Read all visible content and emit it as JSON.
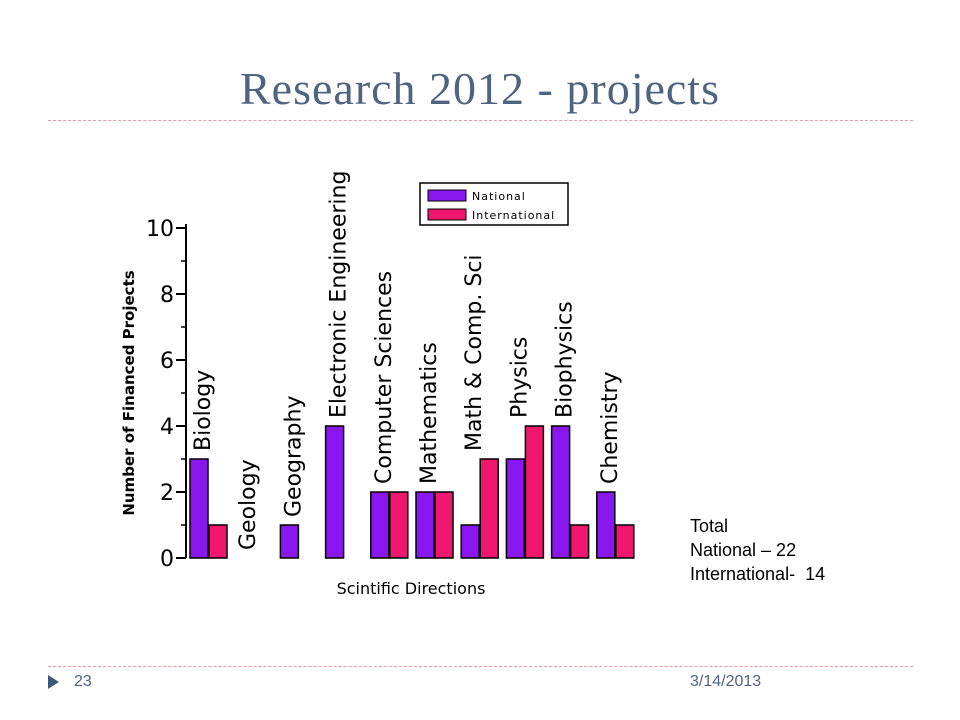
{
  "slide": {
    "title": "Research 2012 - projects",
    "page_number": "23",
    "date": "3/14/2013"
  },
  "totals": {
    "heading": "Total",
    "national": "National – 22",
    "international": "International-  14"
  },
  "colors": {
    "national": "#8a16f0",
    "international": "#f0186e",
    "title": "#4f6480",
    "rule": "#e89aa6"
  },
  "chart_data": {
    "type": "bar",
    "categories": [
      "Biology",
      "Geology",
      "Geography",
      "Electronic Engineering",
      "Computer Sciences",
      "Mathematics",
      "Math & Comp. Sci",
      "Physics",
      "Biophysics",
      "Chemistry"
    ],
    "series": [
      {
        "name": "National",
        "values": [
          3,
          0,
          1,
          4,
          2,
          2,
          1,
          3,
          4,
          2
        ]
      },
      {
        "name": "International",
        "values": [
          1,
          0,
          0,
          0,
          2,
          2,
          3,
          4,
          1,
          1
        ]
      }
    ],
    "yticks": [
      0,
      2,
      4,
      6,
      8,
      10
    ],
    "ylim": [
      0,
      10
    ],
    "xlabel": "Scintific Directions",
    "ylabel": "Number of Financed Projects",
    "legend_position": "top"
  }
}
